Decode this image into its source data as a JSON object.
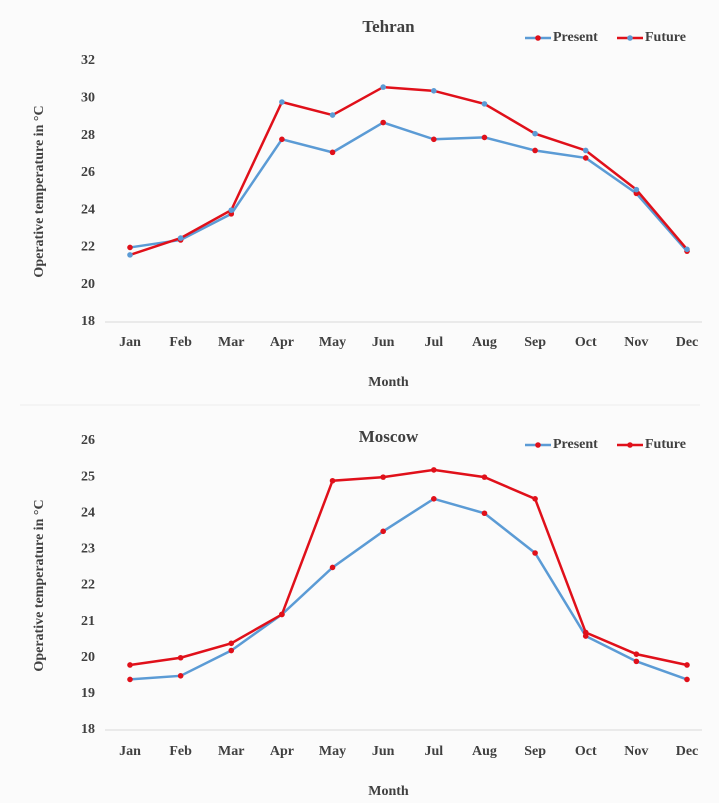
{
  "chart_data": [
    {
      "type": "line",
      "title": "Tehran",
      "xlabel": "Month",
      "ylabel": "Operative temperature in °C",
      "categories": [
        "Jan",
        "Feb",
        "Mar",
        "Apr",
        "May",
        "Jun",
        "Jul",
        "Aug",
        "Sep",
        "Oct",
        "Nov",
        "Dec"
      ],
      "ylim": [
        18,
        32
      ],
      "yticks": [
        18,
        20,
        22,
        24,
        26,
        28,
        30,
        32
      ],
      "grid": false,
      "legend": "top-right",
      "series": [
        {
          "name": "Present",
          "color": "#5b9bd5",
          "marker_color": "#e0101a",
          "values": [
            22.0,
            22.4,
            23.8,
            27.8,
            27.1,
            28.7,
            27.8,
            27.9,
            27.2,
            26.8,
            24.9,
            21.8
          ]
        },
        {
          "name": "Future",
          "color": "#e0101a",
          "marker_color": "#5b9bd5",
          "values": [
            21.6,
            22.5,
            24.0,
            29.8,
            29.1,
            30.6,
            30.4,
            29.7,
            28.1,
            27.2,
            25.1,
            21.9
          ]
        }
      ]
    },
    {
      "type": "line",
      "title": "Moscow",
      "xlabel": "Month",
      "ylabel": "Operative temperature in °C",
      "categories": [
        "Jan",
        "Feb",
        "Mar",
        "Apr",
        "May",
        "Jun",
        "Jul",
        "Aug",
        "Sep",
        "Oct",
        "Nov",
        "Dec"
      ],
      "ylim": [
        18,
        26
      ],
      "yticks": [
        18,
        19,
        20,
        21,
        22,
        23,
        24,
        25,
        26
      ],
      "grid": false,
      "legend": "top-right",
      "series": [
        {
          "name": "Present",
          "color": "#5b9bd5",
          "marker_color": "#e0101a",
          "values": [
            19.4,
            19.5,
            20.2,
            21.2,
            22.5,
            23.5,
            24.4,
            24.0,
            22.9,
            20.6,
            19.9,
            19.4
          ]
        },
        {
          "name": "Future",
          "color": "#e0101a",
          "marker_color": "#e0101a",
          "values": [
            19.8,
            20.0,
            20.4,
            21.2,
            24.9,
            25.0,
            25.2,
            25.0,
            24.4,
            20.7,
            20.1,
            19.8
          ]
        }
      ]
    }
  ]
}
